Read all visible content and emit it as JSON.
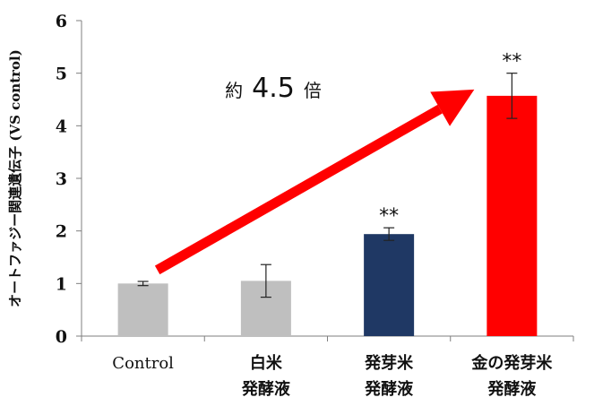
{
  "chart_data": {
    "type": "bar",
    "ylabel": "オートファジー関連遺伝子 (VS control)",
    "ylim": [
      0,
      6
    ],
    "yticks": [
      "0",
      "1",
      "2",
      "3",
      "4",
      "5",
      "6"
    ],
    "grid": false,
    "categories": [
      [
        "Control"
      ],
      [
        "白米",
        "発酵液"
      ],
      [
        "発芽米",
        "発酵液"
      ],
      [
        "金の発芽米",
        "発酵液"
      ]
    ],
    "values": [
      1.0,
      1.05,
      1.94,
      4.57
    ],
    "errors": [
      0.04,
      0.31,
      0.12,
      0.43
    ],
    "colors": [
      "#bfbfbf",
      "#bfbfbf",
      "#1f3864",
      "#ff0000"
    ],
    "significance": [
      "",
      "",
      "**",
      "**"
    ],
    "annotation": {
      "prefix": "約",
      "value": "4.5",
      "suffix": "倍",
      "arrow_color": "#ff0000",
      "arrow_from_category": 0,
      "arrow_to_category": 3
    }
  }
}
